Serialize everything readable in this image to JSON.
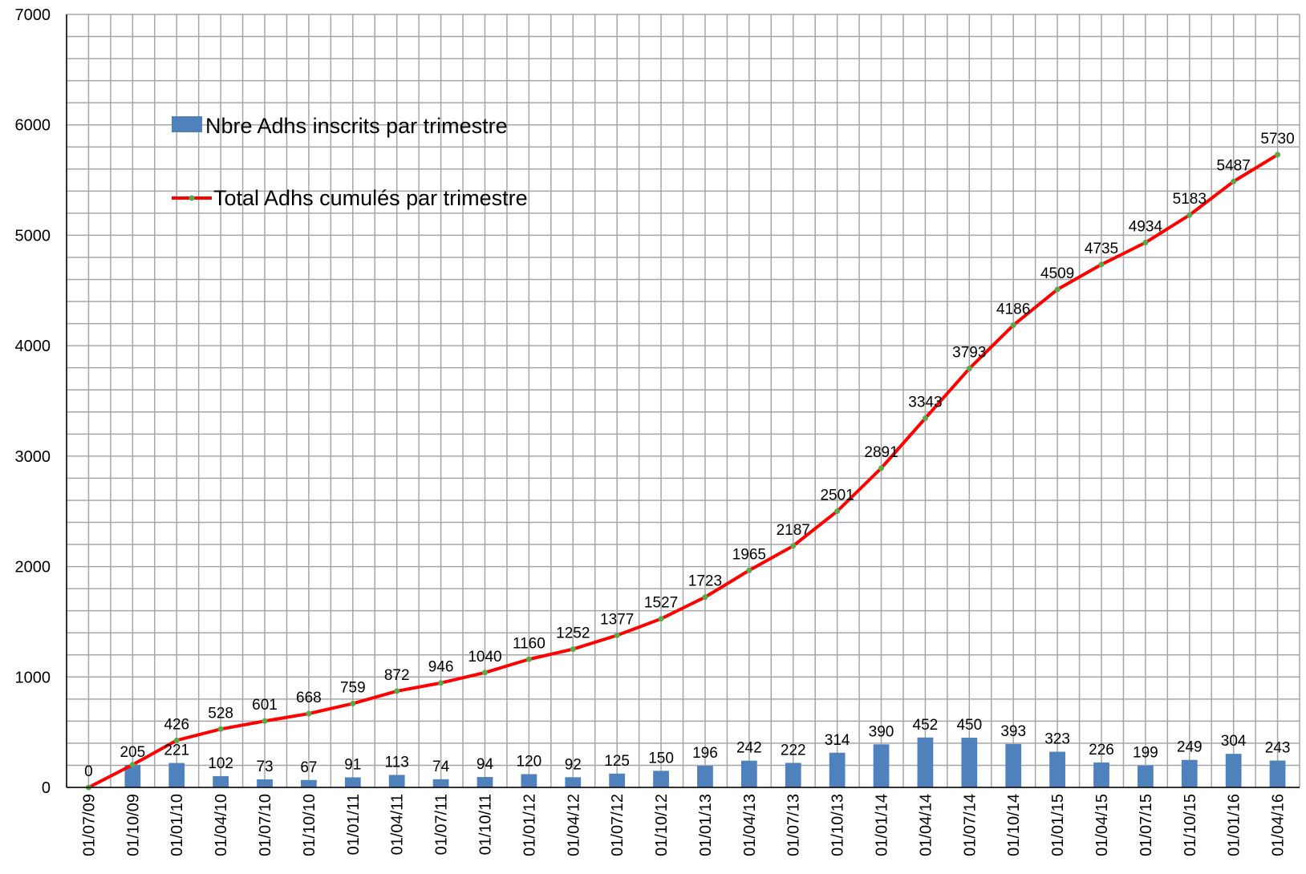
{
  "chart_data": {
    "type": "bar+line",
    "categories": [
      "01/07/09",
      "01/10/09",
      "01/01/10",
      "01/04/10",
      "01/07/10",
      "01/10/10",
      "01/01/11",
      "01/04/11",
      "01/07/11",
      "01/10/11",
      "01/01/12",
      "01/04/12",
      "01/07/12",
      "01/10/12",
      "01/01/13",
      "01/04/13",
      "01/07/13",
      "01/10/13",
      "01/01/14",
      "01/04/14",
      "01/07/14",
      "01/10/14",
      "01/01/15",
      "01/04/15",
      "01/07/15",
      "01/10/15",
      "01/01/16",
      "01/04/16"
    ],
    "series": [
      {
        "name": "Nbre Adhs inscrits par trimestre",
        "type": "bar",
        "color": "#4f81bd",
        "values": [
          null,
          205,
          221,
          102,
          73,
          67,
          91,
          113,
          74,
          94,
          120,
          92,
          125,
          150,
          196,
          242,
          222,
          314,
          390,
          452,
          450,
          393,
          323,
          226,
          199,
          249,
          304,
          243
        ],
        "labels": [
          "",
          "205",
          "221",
          "102",
          "73",
          "67",
          "91",
          "113",
          "74",
          "94",
          "120",
          "92",
          "125",
          "150",
          "196",
          "242",
          "222",
          "314",
          "390",
          "452",
          "450",
          "393",
          "323",
          "226",
          "199",
          "249",
          "304",
          "243"
        ]
      },
      {
        "name": "Total Adhs cumulés par trimestre",
        "type": "line",
        "color": "#ff0000",
        "marker_color": "#5aa84a",
        "values": [
          0,
          205,
          426,
          528,
          601,
          668,
          759,
          872,
          946,
          1040,
          1160,
          1252,
          1377,
          1527,
          1723,
          1965,
          2187,
          2501,
          2891,
          3343,
          3793,
          4186,
          4509,
          4735,
          4934,
          5183,
          5487,
          5730
        ],
        "labels": [
          "0",
          "",
          "426",
          "528",
          "601",
          "668",
          "759",
          "872",
          "946",
          "1040",
          "1160",
          "1252",
          "1377",
          "1527",
          "1723",
          "1965",
          "2187",
          "2501",
          "2891",
          "3343",
          "3793",
          "4186",
          "4509",
          "4735",
          "4934",
          "5183",
          "5487",
          "5730"
        ]
      }
    ],
    "yticks": [
      "0",
      "1000",
      "2000",
      "3000",
      "4000",
      "5000",
      "6000",
      "7000"
    ],
    "ylim": [
      0,
      7000
    ],
    "grid": true,
    "legend_position": "top-left"
  }
}
